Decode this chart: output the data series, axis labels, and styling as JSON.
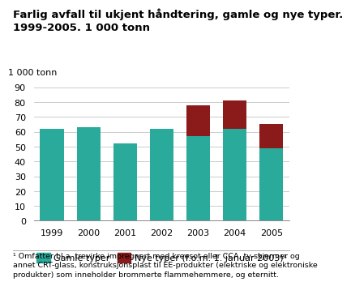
{
  "title": "Farlig avfall til ukjent håndtering, gamle og nye typer.\n1999-2005. 1 000 tonn",
  "ylabel": "1 000 tonn",
  "years": [
    "1999",
    "2000",
    "2001",
    "2002",
    "2003",
    "2004",
    "2005"
  ],
  "gamle": [
    62,
    63,
    52,
    62,
    57,
    62,
    49
  ],
  "nye": [
    0,
    0,
    0,
    0,
    21,
    19,
    16
  ],
  "color_gamle": "#2aaa9a",
  "color_nye": "#8b1a1a",
  "ylim": [
    0,
    90
  ],
  "yticks": [
    0,
    10,
    20,
    30,
    40,
    50,
    60,
    70,
    80,
    90
  ],
  "legend_gamle": "Gamle typer",
  "legend_nye": "Nye typer (f.o.m. 1. januar 2003)¹",
  "footnote": "¹ Omfatter bl.a. trevirke impregnert med kreosot eller CCA, tv-skjermer og\nannet CRT-glass, konstruksjonsplast til EE-produkter (elektriske og elektroniske\nprodukter) som inneholder brommerte flammehemmere, og eternitt.",
  "background_color": "#ffffff",
  "grid_color": "#cccccc",
  "title_fontsize": 9.5,
  "axis_fontsize": 8,
  "legend_fontsize": 8,
  "footnote_fontsize": 6.8
}
